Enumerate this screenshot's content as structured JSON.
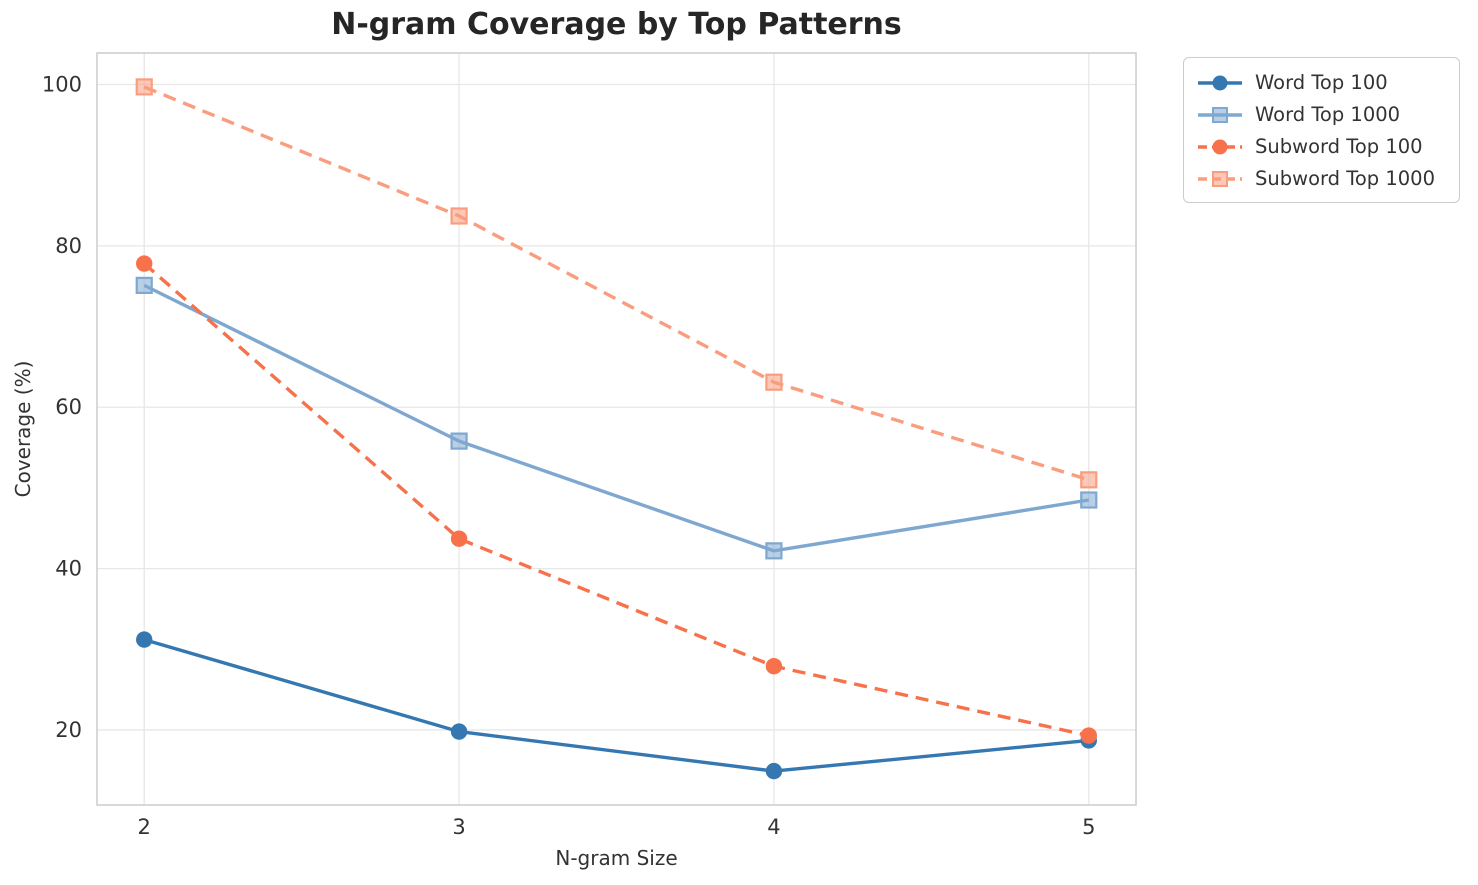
{
  "title": "N-gram Coverage by Top Patterns",
  "colors": {
    "background": "#ffffff",
    "grid": "#e7e7e7",
    "spine": "#cccccc",
    "tick_text": "#333333",
    "title_text": "#262626"
  },
  "chart_data": {
    "type": "line",
    "title": "N-gram Coverage by Top Patterns",
    "xlabel": "N-gram Size",
    "ylabel": "Coverage (%)",
    "x": [
      2,
      3,
      4,
      5
    ],
    "xticks": [
      2,
      3,
      4,
      5
    ],
    "yticks": [
      20,
      40,
      60,
      80,
      100
    ],
    "xlim": [
      1.85,
      5.15
    ],
    "ylim": [
      10.7,
      103.9
    ],
    "grid": true,
    "legend_position": "outside-upper-right",
    "series": [
      {
        "name": "Word Top 100",
        "values": [
          31.2,
          19.8,
          14.9,
          18.7
        ],
        "color": "#3578B1",
        "linestyle": "solid",
        "marker": "circle"
      },
      {
        "name": "Word Top 1000",
        "values": [
          75.1,
          55.8,
          42.2,
          48.5
        ],
        "color": "#7FA8D0",
        "linestyle": "solid",
        "marker": "square"
      },
      {
        "name": "Subword Top 100",
        "values": [
          77.8,
          43.7,
          27.9,
          19.3
        ],
        "color": "#F7714B",
        "linestyle": "dashed",
        "marker": "circle"
      },
      {
        "name": "Subword Top 1000",
        "values": [
          99.7,
          83.7,
          63.1,
          51.0
        ],
        "color": "#FA9D7F",
        "linestyle": "dashed",
        "marker": "square"
      }
    ]
  }
}
